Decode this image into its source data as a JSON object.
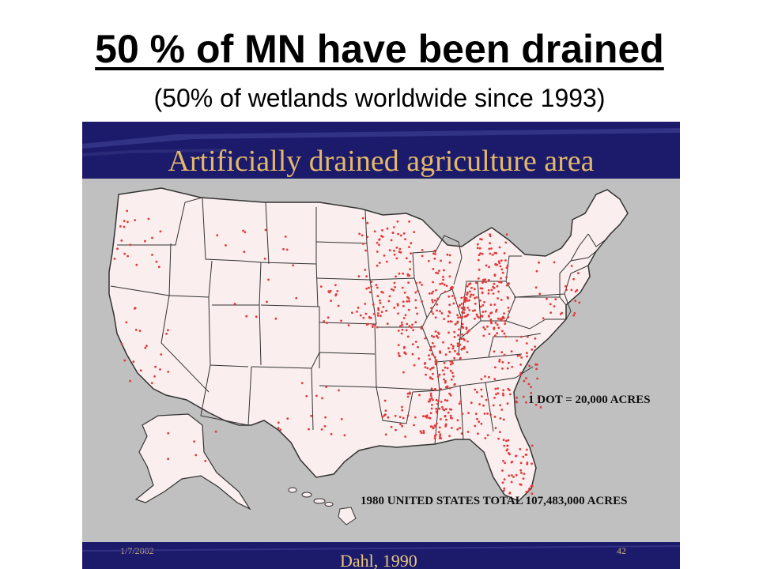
{
  "page": {
    "title": "50 % of MN have been drained",
    "subtitle": "(50% of wetlands worldwide since 1993)"
  },
  "slide": {
    "title": "Artificially drained agriculture area",
    "legend_dot": "1 DOT = 20,000 ACRES",
    "legend_total": "1980 UNITED STATES TOTAL 107,483,000 ACRES",
    "footer_date": "1/7/2002",
    "footer_page": "42",
    "source": "Dahl, 1990"
  },
  "colors": {
    "slide_background": "#1b1a6b",
    "map_panel": "#c0c0c0",
    "land": "#fbeeee",
    "state_lines": "#333333",
    "dots": "#e23a3a",
    "slide_title": "#e3b86a"
  }
}
